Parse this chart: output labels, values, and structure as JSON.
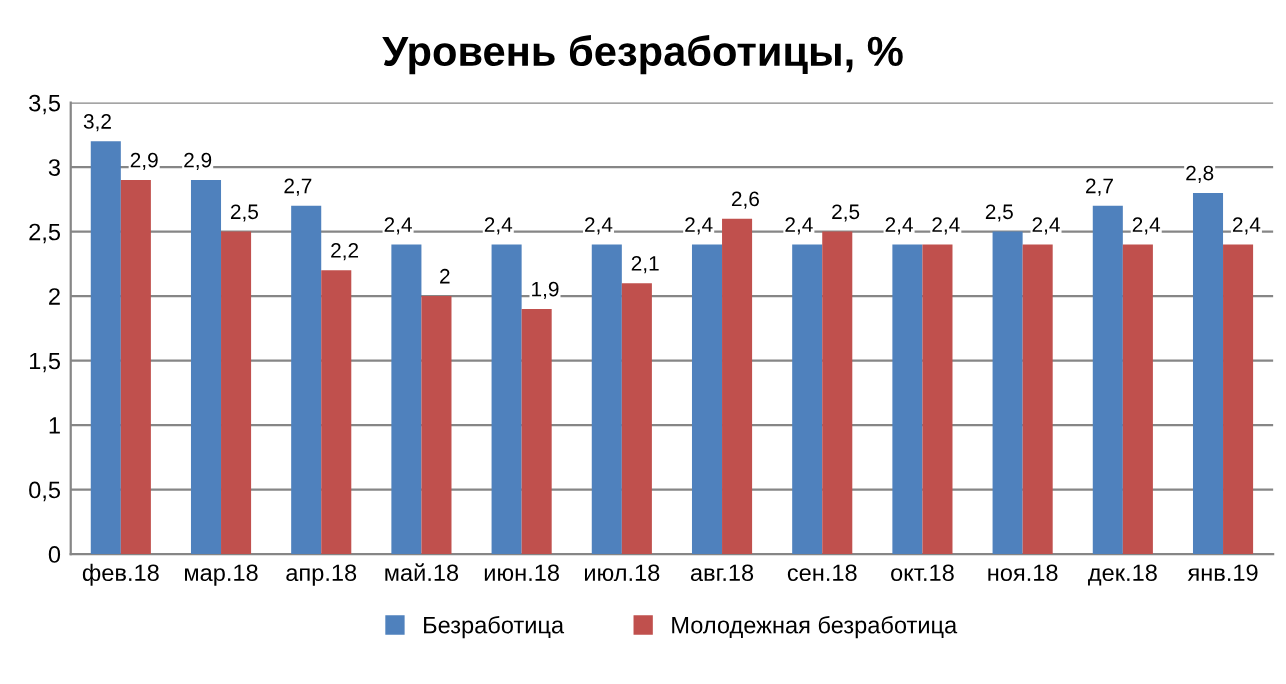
{
  "chart_data": {
    "type": "bar",
    "title": "Уровень безработицы, %",
    "categories": [
      "фев.18",
      "мар.18",
      "апр.18",
      "май.18",
      "июн.18",
      "июл.18",
      "авг.18",
      "сен.18",
      "окт.18",
      "ноя.18",
      "дек.18",
      "янв.19"
    ],
    "series": [
      {
        "name": "Безработица",
        "color": "#4f81bd",
        "values": [
          3.2,
          2.9,
          2.7,
          2.4,
          2.4,
          2.4,
          2.4,
          2.4,
          2.4,
          2.5,
          2.7,
          2.8
        ],
        "value_labels": [
          "3,2",
          "2,9",
          "2,7",
          "2,4",
          "2,4",
          "2,4",
          "2,4",
          "2,4",
          "2,4",
          "2,5",
          "2,7",
          "2,8"
        ]
      },
      {
        "name": "Молодежная безработица",
        "color": "#c0504d",
        "values": [
          2.9,
          2.5,
          2.2,
          2,
          1.9,
          2.1,
          2.6,
          2.5,
          2.4,
          2.4,
          2.4,
          2.4
        ],
        "value_labels": [
          "2,9",
          "2,5",
          "2,2",
          "2",
          "1,9",
          "2,1",
          "2,6",
          "2,5",
          "2,4",
          "2,4",
          "2,4",
          "2,4"
        ]
      }
    ],
    "ylim": [
      0,
      3.5
    ],
    "yticks": [
      0,
      {
        "value": 0.5,
        "label": "0,5"
      },
      1,
      {
        "value": 1.5,
        "label": "1,5"
      },
      2,
      {
        "value": 2.5,
        "label": "2,5"
      },
      3,
      {
        "value": 3.5,
        "label": "3,5"
      }
    ],
    "grid": "y",
    "legend": "bottom"
  }
}
